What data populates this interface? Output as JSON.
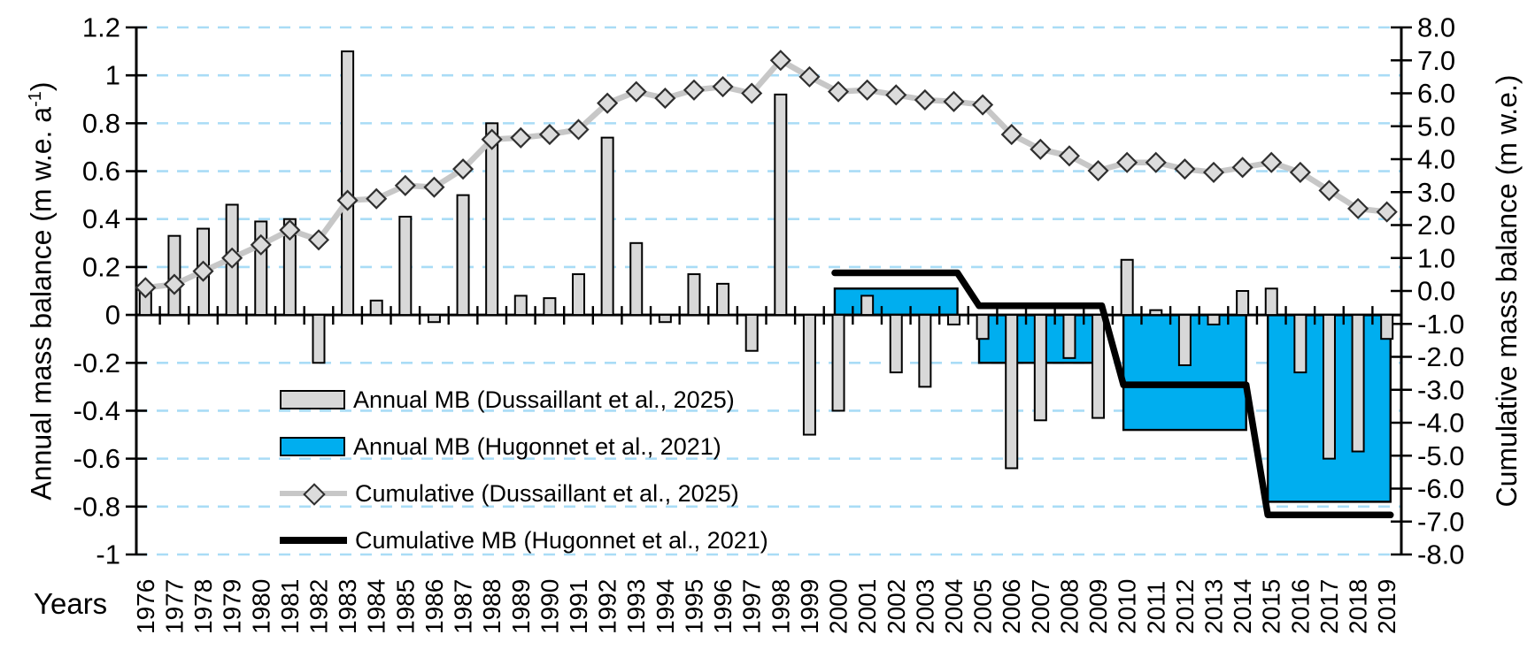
{
  "chart_data": {
    "type": "bar",
    "subtype": "dual-axis combo: annual bars + cumulative lines",
    "title": "",
    "xlabel": "Years",
    "ylabel_left": {
      "pre": "Annual mass balance (m w.e. a",
      "sup": "-1",
      "post": ")"
    },
    "ylabel_right": "Cumulative mass balance (m w.e.)",
    "grid": "horizontal light-blue dashed",
    "legend_position": "inside bottom-left",
    "years": [
      1976,
      1977,
      1978,
      1979,
      1980,
      1981,
      1982,
      1983,
      1984,
      1985,
      1986,
      1987,
      1988,
      1989,
      1990,
      1991,
      1992,
      1993,
      1994,
      1995,
      1996,
      1997,
      1998,
      1999,
      2000,
      2001,
      2002,
      2003,
      2004,
      2005,
      2006,
      2007,
      2008,
      2009,
      2010,
      2011,
      2012,
      2013,
      2014,
      2015,
      2016,
      2017,
      2018,
      2019
    ],
    "left_axis": {
      "min": -1,
      "max": 1.2,
      "tick_labels": [
        "1.2",
        "1",
        "0.8",
        "0.6",
        "0.4",
        "0.2",
        "0",
        "-0.2",
        "-0.4",
        "-0.6",
        "-0.8",
        "-1"
      ],
      "tick_values": [
        1.2,
        1.0,
        0.8,
        0.6,
        0.4,
        0.2,
        0,
        -0.2,
        -0.4,
        -0.6,
        -0.8,
        -1.0
      ]
    },
    "right_axis": {
      "min": -8,
      "max": 8,
      "tick_labels": [
        "8.0",
        "7.0",
        "6.0",
        "5.0",
        "4.0",
        "3.0",
        "2.0",
        "1.0",
        "0.0",
        "-1.0",
        "-2.0",
        "-3.0",
        "-4.0",
        "-5.0",
        "-6.0",
        "-7.0",
        "-8.0"
      ],
      "tick_values": [
        8,
        7,
        6,
        5,
        4,
        3,
        2,
        1,
        0,
        -1,
        -2,
        -3,
        -4,
        -5,
        -6,
        -7,
        -8
      ]
    },
    "series": [
      {
        "name": "Annual MB (Dussaillant et al., 2025)",
        "kind": "bar",
        "axis": "left",
        "color": "#D8D8D8",
        "edge": "#000000",
        "values": [
          0.12,
          0.33,
          0.36,
          0.46,
          0.39,
          0.4,
          -0.2,
          1.1,
          0.06,
          0.41,
          -0.03,
          0.5,
          0.8,
          0.08,
          0.07,
          0.17,
          0.74,
          0.3,
          -0.03,
          0.17,
          0.13,
          -0.15,
          0.92,
          -0.5,
          -0.4,
          0.08,
          -0.24,
          -0.3,
          -0.04,
          -0.1,
          -0.64,
          -0.44,
          -0.18,
          -0.43,
          0.23,
          0.02,
          -0.21,
          -0.04,
          0.1,
          0.11,
          -0.24,
          -0.6,
          -0.57,
          -0.1
        ]
      },
      {
        "name": "Annual MB (Hugonnet et al., 2021)",
        "kind": "bar-5yr-period",
        "axis": "left",
        "color": "#00AEEF",
        "edge": "#000000",
        "periods": [
          {
            "years": "2000-2004",
            "start": 2000,
            "end": 2004,
            "value": 0.11
          },
          {
            "years": "2005-2009",
            "start": 2005,
            "end": 2009,
            "value": -0.2
          },
          {
            "years": "2010-2014",
            "start": 2010,
            "end": 2014,
            "value": -0.48
          },
          {
            "years": "2015-2019",
            "start": 2015,
            "end": 2019,
            "value": -0.78
          }
        ]
      },
      {
        "name": "Cumulative (Dussaillant et al., 2025)",
        "kind": "line-with-diamond-markers",
        "axis": "right",
        "line_color": "#C7C7C7",
        "marker_fill": "#DCDCDC",
        "marker_edge": "#2F2F2F",
        "values": [
          0.1,
          0.2,
          0.6,
          1.0,
          1.4,
          1.85,
          1.55,
          2.75,
          2.8,
          3.2,
          3.15,
          3.7,
          4.6,
          4.65,
          4.75,
          4.9,
          5.7,
          6.05,
          5.85,
          6.1,
          6.2,
          6.0,
          7.0,
          6.5,
          6.05,
          6.1,
          5.95,
          5.8,
          5.75,
          5.65,
          4.75,
          4.3,
          4.1,
          3.65,
          3.9,
          3.9,
          3.7,
          3.6,
          3.75,
          3.9,
          3.6,
          3.05,
          2.5,
          2.4
        ]
      },
      {
        "name": "Cumulative MB (Hugonnet et al., 2021)",
        "kind": "step-line",
        "axis": "right",
        "color": "#000000",
        "periods": [
          {
            "years": "2000-2004",
            "start": 2000,
            "end": 2004,
            "value": 0.55
          },
          {
            "years": "2005-2009",
            "start": 2005,
            "end": 2009,
            "value": -0.45
          },
          {
            "years": "2010-2014",
            "start": 2010,
            "end": 2014,
            "value": -2.85
          },
          {
            "years": "2015-2019",
            "start": 2015,
            "end": 2019,
            "value": -6.8
          }
        ]
      }
    ],
    "colors": {
      "gridline": "#A9DCF6",
      "axis": "#000000",
      "background": "#FFFFFF"
    }
  }
}
